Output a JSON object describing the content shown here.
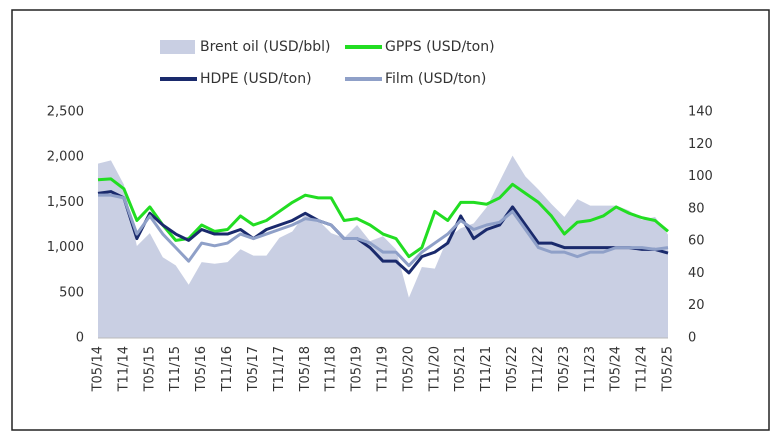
{
  "chart_data": {
    "type": "line",
    "categories": [
      "T05/14",
      null,
      "T11/14",
      null,
      "T05/15",
      null,
      "T11/15",
      null,
      "T05/16",
      null,
      "T11/16",
      null,
      "T05/17",
      null,
      "T11/17",
      null,
      "T05/18",
      null,
      "T11/18",
      null,
      "T05/19",
      null,
      "T11/19",
      null,
      "T05/20",
      null,
      "T11/20",
      null,
      "T05/21",
      null,
      "T11/21",
      null,
      "T05/22",
      null,
      "T11/22",
      null,
      "T05/23",
      null,
      "T11/23",
      null,
      "T05/24",
      null,
      "T11/24",
      null,
      "T05/25"
    ],
    "series": [
      {
        "name": "Brent oil (USD/bbl)",
        "type": "area",
        "axis": "y2",
        "color": "#c9cfe3",
        "values": [
          108,
          110,
          95,
          57,
          65,
          50,
          45,
          33,
          47,
          46,
          47,
          55,
          51,
          51,
          62,
          66,
          77,
          73,
          65,
          62,
          70,
          60,
          63,
          55,
          25,
          44,
          43,
          62,
          68,
          71,
          81,
          97,
          113,
          100,
          92,
          83,
          75,
          86,
          82,
          82,
          82,
          79,
          73,
          75,
          64
        ]
      },
      {
        "name": "GPPS (USD/ton)",
        "type": "line",
        "color": "#22dd22",
        "values": [
          1750,
          1760,
          1650,
          1300,
          1450,
          1250,
          1080,
          1100,
          1250,
          1180,
          1200,
          1350,
          1250,
          1300,
          1400,
          1500,
          1580,
          1550,
          1550,
          1300,
          1320,
          1250,
          1150,
          1100,
          900,
          1000,
          1400,
          1300,
          1500,
          1500,
          1480,
          1550,
          1700,
          1600,
          1500,
          1350,
          1150,
          1280,
          1300,
          1350,
          1450,
          1380,
          1330,
          1300,
          1180
        ]
      },
      {
        "name": "HDPE (USD/ton)",
        "type": "line",
        "color": "#1a2a6c",
        "values": [
          1600,
          1620,
          1550,
          1100,
          1380,
          1250,
          1150,
          1080,
          1200,
          1150,
          1150,
          1200,
          1100,
          1200,
          1250,
          1300,
          1380,
          1300,
          1250,
          1100,
          1100,
          1000,
          850,
          850,
          720,
          900,
          950,
          1050,
          1350,
          1100,
          1200,
          1250,
          1450,
          1250,
          1050,
          1050,
          1000,
          1000,
          1000,
          1000,
          1000,
          1000,
          980,
          980,
          940
        ]
      },
      {
        "name": "Film (USD/ton)",
        "type": "line",
        "color": "#8fa0c8",
        "values": [
          1580,
          1580,
          1550,
          1150,
          1350,
          1150,
          1000,
          850,
          1050,
          1020,
          1050,
          1150,
          1100,
          1150,
          1200,
          1250,
          1320,
          1300,
          1250,
          1100,
          1100,
          1050,
          950,
          950,
          800,
          950,
          1050,
          1150,
          1300,
          1200,
          1250,
          1280,
          1400,
          1200,
          1000,
          950,
          950,
          900,
          950,
          950,
          1000,
          1000,
          1000,
          980,
          1000
        ]
      }
    ],
    "ylim": [
      0,
      2500
    ],
    "yticks": [
      0,
      500,
      {
        "value": 1000,
        "label": "1,000"
      },
      {
        "value": 1500,
        "label": "1,500"
      },
      {
        "value": 2000,
        "label": "2,000"
      },
      {
        "value": 2500,
        "label": "2,500"
      }
    ],
    "y2lim": [
      0,
      140
    ],
    "y2ticks": [
      0,
      20,
      40,
      60,
      80,
      100,
      120,
      140
    ],
    "grid": false
  }
}
